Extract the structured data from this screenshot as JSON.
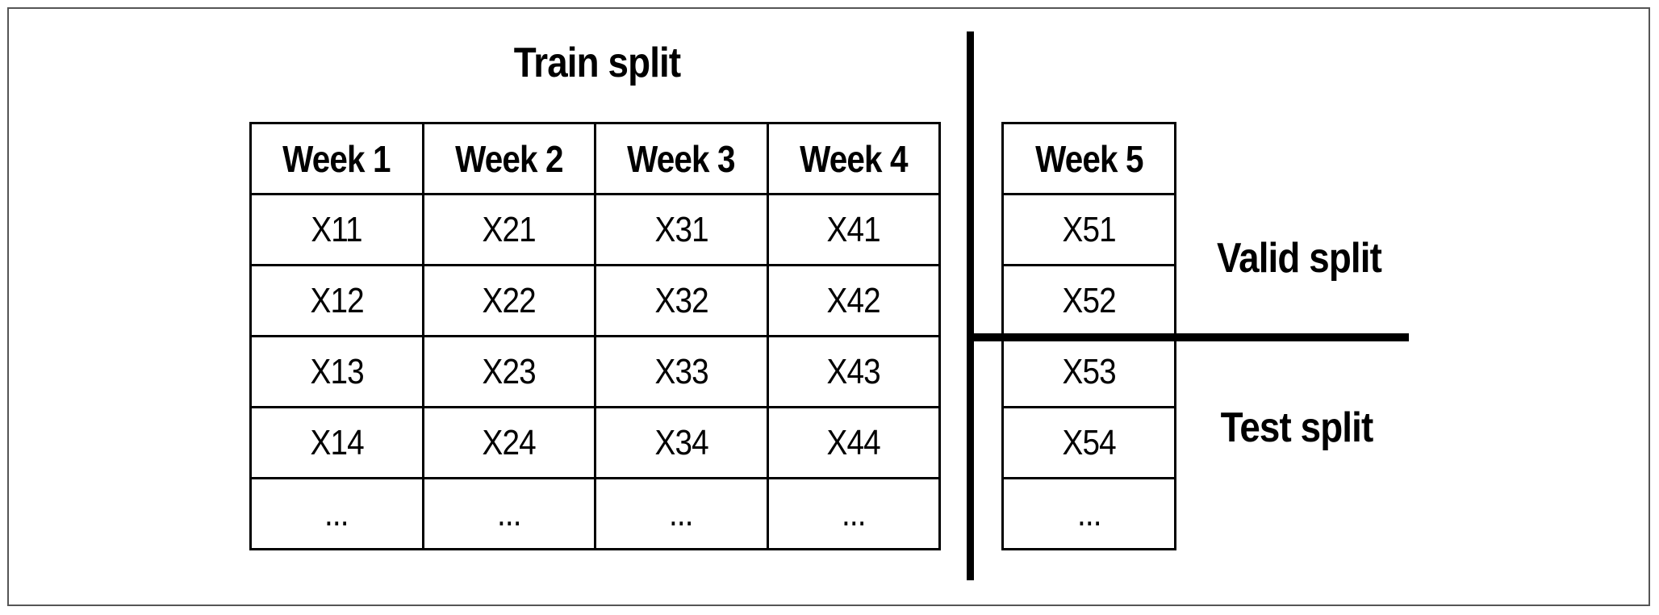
{
  "labels": {
    "train": "Train split",
    "valid": "Valid split",
    "test": "Test split"
  },
  "train_table": {
    "headers": [
      "Week 1",
      "Week 2",
      "Week 3",
      "Week 4"
    ],
    "rows": [
      [
        "X11",
        "X21",
        "X31",
        "X41"
      ],
      [
        "X12",
        "X22",
        "X32",
        "X42"
      ],
      [
        "X13",
        "X23",
        "X33",
        "X43"
      ],
      [
        "X14",
        "X24",
        "X34",
        "X44"
      ],
      [
        "...",
        "...",
        "...",
        "..."
      ]
    ]
  },
  "eval_table": {
    "headers": [
      "Week 5"
    ],
    "rows": [
      [
        "X51"
      ],
      [
        "X52"
      ],
      [
        "X53"
      ],
      [
        "X54"
      ],
      [
        "..."
      ]
    ]
  }
}
